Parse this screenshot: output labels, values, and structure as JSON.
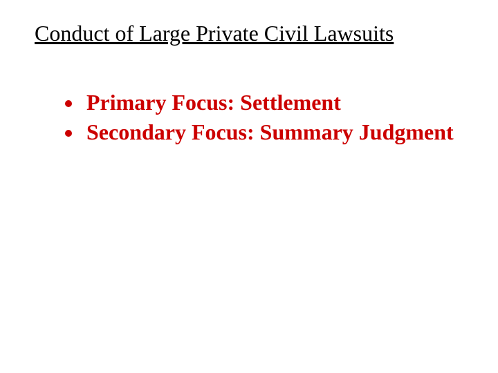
{
  "slide": {
    "title": "Conduct of Large Private Civil Lawsuits",
    "bullets": [
      "Primary Focus:  Settlement",
      "Secondary Focus: Summary Judgment"
    ],
    "title_color": "#000000",
    "bullet_color": "#cc0000",
    "background_color": "#ffffff",
    "title_fontsize": 32,
    "bullet_fontsize": 32,
    "title_underline": true,
    "bullet_bold": true
  }
}
